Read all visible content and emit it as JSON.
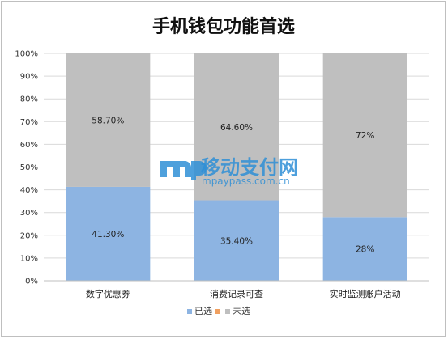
{
  "chart_data": {
    "type": "bar",
    "stacked": true,
    "title": "手机钱包功能首选",
    "categories": [
      "数字优惠券",
      "消费记录可查",
      "实时监测账户活动"
    ],
    "series": [
      {
        "name": "已选",
        "color": "#8db4e2",
        "values": [
          41.3,
          35.4,
          28
        ],
        "labels": [
          "41.30%",
          "35.40%",
          "28%"
        ]
      },
      {
        "name": "未选",
        "color": "#bfbfbf",
        "values": [
          58.7,
          64.6,
          72
        ],
        "labels": [
          "58.70%",
          "64.60%",
          "72%"
        ]
      }
    ],
    "ylim": [
      0,
      100
    ],
    "yticks": [
      "0%",
      "10%",
      "20%",
      "30%",
      "40%",
      "50%",
      "60%",
      "70%",
      "80%",
      "90%",
      "100%"
    ],
    "grid": true,
    "legend": {
      "position": "bottom",
      "items": [
        {
          "name": "已选",
          "color": "#8db4e2"
        },
        {
          "name": "",
          "color": "#f0a060"
        },
        {
          "name": "未选",
          "color": "#bfbfbf"
        }
      ]
    }
  },
  "watermark": {
    "logo_text": "mp",
    "name": "移动支付网",
    "url": "mpaypass.com.cn",
    "color": "#2f8fd6"
  }
}
